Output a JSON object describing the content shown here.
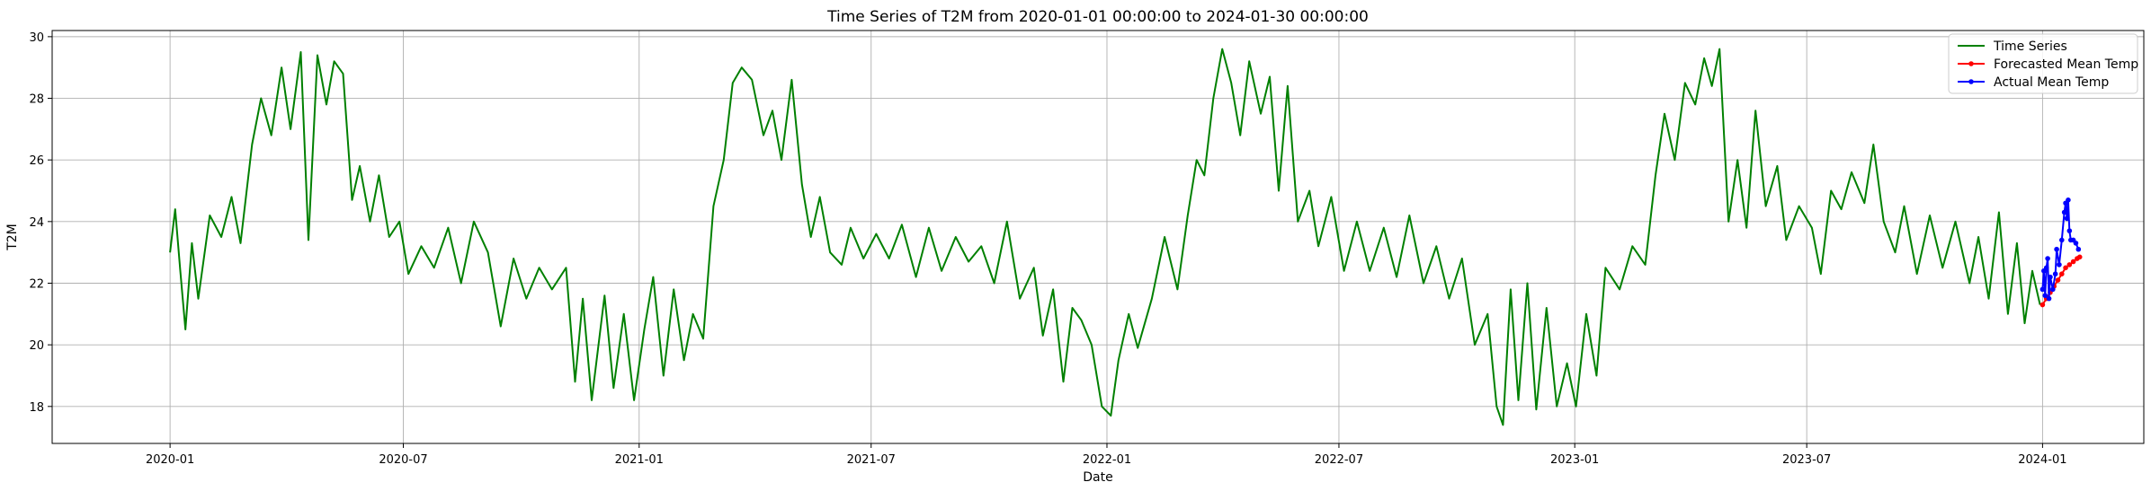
{
  "chart_data": {
    "type": "line",
    "title": "Time Series of T2M from 2020-01-01 00:00:00 to 2024-01-30 00:00:00",
    "xlabel": "Date",
    "ylabel": "T2M",
    "x_range": [
      "2019-10-01",
      "2024-03-20"
    ],
    "ylim": [
      16.8,
      30.2
    ],
    "grid": true,
    "legend_position": "top-right",
    "x_ticks": [
      "2020-01",
      "2020-07",
      "2021-01",
      "2021-07",
      "2022-01",
      "2022-07",
      "2023-01",
      "2023-07",
      "2024-01"
    ],
    "y_ticks": [
      18,
      20,
      22,
      24,
      26,
      28,
      30
    ],
    "colors": {
      "time_series": "#008000",
      "forecast": "#ff0000",
      "actual": "#0000ff",
      "grid": "#b0b0b0"
    },
    "series": [
      {
        "name": "Time Series",
        "style": "line",
        "points": [
          [
            "2020-01-01",
            23.0
          ],
          [
            "2020-01-05",
            24.4
          ],
          [
            "2020-01-09",
            22.4
          ],
          [
            "2020-01-13",
            20.5
          ],
          [
            "2020-01-18",
            23.3
          ],
          [
            "2020-01-23",
            21.5
          ],
          [
            "2020-02-01",
            24.2
          ],
          [
            "2020-02-10",
            23.5
          ],
          [
            "2020-02-18",
            24.8
          ],
          [
            "2020-02-25",
            23.3
          ],
          [
            "2020-03-05",
            26.5
          ],
          [
            "2020-03-12",
            28.0
          ],
          [
            "2020-03-20",
            26.8
          ],
          [
            "2020-03-28",
            29.0
          ],
          [
            "2020-04-04",
            27.0
          ],
          [
            "2020-04-12",
            29.5
          ],
          [
            "2020-04-18",
            23.4
          ],
          [
            "2020-04-25",
            29.4
          ],
          [
            "2020-05-02",
            27.8
          ],
          [
            "2020-05-08",
            29.2
          ],
          [
            "2020-05-15",
            28.8
          ],
          [
            "2020-05-22",
            24.7
          ],
          [
            "2020-05-28",
            25.8
          ],
          [
            "2020-06-05",
            24.0
          ],
          [
            "2020-06-12",
            25.5
          ],
          [
            "2020-06-20",
            23.5
          ],
          [
            "2020-06-28",
            24.0
          ],
          [
            "2020-07-05",
            22.3
          ],
          [
            "2020-07-15",
            23.2
          ],
          [
            "2020-07-25",
            22.5
          ],
          [
            "2020-08-05",
            23.8
          ],
          [
            "2020-08-15",
            22.0
          ],
          [
            "2020-08-25",
            24.0
          ],
          [
            "2020-09-05",
            23.0
          ],
          [
            "2020-09-15",
            20.6
          ],
          [
            "2020-09-25",
            22.8
          ],
          [
            "2020-10-05",
            21.5
          ],
          [
            "2020-10-15",
            22.5
          ],
          [
            "2020-10-25",
            21.8
          ],
          [
            "2020-11-05",
            22.5
          ],
          [
            "2020-11-12",
            18.8
          ],
          [
            "2020-11-18",
            21.5
          ],
          [
            "2020-11-25",
            18.2
          ],
          [
            "2020-12-05",
            21.6
          ],
          [
            "2020-12-12",
            18.6
          ],
          [
            "2020-12-20",
            21.0
          ],
          [
            "2020-12-28",
            18.2
          ],
          [
            "2021-01-05",
            20.5
          ],
          [
            "2021-01-12",
            22.2
          ],
          [
            "2021-01-20",
            19.0
          ],
          [
            "2021-01-28",
            21.8
          ],
          [
            "2021-02-05",
            19.5
          ],
          [
            "2021-02-12",
            21.0
          ],
          [
            "2021-02-20",
            20.2
          ],
          [
            "2021-02-28",
            24.5
          ],
          [
            "2021-03-08",
            26.0
          ],
          [
            "2021-03-15",
            28.5
          ],
          [
            "2021-03-22",
            29.0
          ],
          [
            "2021-03-30",
            28.6
          ],
          [
            "2021-04-08",
            26.8
          ],
          [
            "2021-04-15",
            27.6
          ],
          [
            "2021-04-22",
            26.0
          ],
          [
            "2021-04-30",
            28.6
          ],
          [
            "2021-05-08",
            25.2
          ],
          [
            "2021-05-15",
            23.5
          ],
          [
            "2021-05-22",
            24.8
          ],
          [
            "2021-05-30",
            23.0
          ],
          [
            "2021-06-08",
            22.6
          ],
          [
            "2021-06-15",
            23.8
          ],
          [
            "2021-06-25",
            22.8
          ],
          [
            "2021-07-05",
            23.6
          ],
          [
            "2021-07-15",
            22.8
          ],
          [
            "2021-07-25",
            23.9
          ],
          [
            "2021-08-05",
            22.2
          ],
          [
            "2021-08-15",
            23.8
          ],
          [
            "2021-08-25",
            22.4
          ],
          [
            "2021-09-05",
            23.5
          ],
          [
            "2021-09-15",
            22.7
          ],
          [
            "2021-09-25",
            23.2
          ],
          [
            "2021-10-05",
            22.0
          ],
          [
            "2021-10-15",
            24.0
          ],
          [
            "2021-10-25",
            21.5
          ],
          [
            "2021-11-05",
            22.5
          ],
          [
            "2021-11-12",
            20.3
          ],
          [
            "2021-11-20",
            21.8
          ],
          [
            "2021-11-28",
            18.8
          ],
          [
            "2021-12-05",
            21.2
          ],
          [
            "2021-12-12",
            20.8
          ],
          [
            "2021-12-20",
            20.0
          ],
          [
            "2021-12-28",
            18.0
          ],
          [
            "2022-01-04",
            17.7
          ],
          [
            "2022-01-10",
            19.5
          ],
          [
            "2022-01-18",
            21.0
          ],
          [
            "2022-01-25",
            19.9
          ],
          [
            "2022-02-05",
            21.5
          ],
          [
            "2022-02-15",
            23.5
          ],
          [
            "2022-02-25",
            21.8
          ],
          [
            "2022-03-05",
            24.2
          ],
          [
            "2022-03-12",
            26.0
          ],
          [
            "2022-03-18",
            25.5
          ],
          [
            "2022-03-25",
            28.0
          ],
          [
            "2022-04-01",
            29.6
          ],
          [
            "2022-04-08",
            28.5
          ],
          [
            "2022-04-15",
            26.8
          ],
          [
            "2022-04-22",
            29.2
          ],
          [
            "2022-05-01",
            27.5
          ],
          [
            "2022-05-08",
            28.7
          ],
          [
            "2022-05-15",
            25.0
          ],
          [
            "2022-05-22",
            28.4
          ],
          [
            "2022-05-30",
            24.0
          ],
          [
            "2022-06-08",
            25.0
          ],
          [
            "2022-06-15",
            23.2
          ],
          [
            "2022-06-25",
            24.8
          ],
          [
            "2022-07-05",
            22.4
          ],
          [
            "2022-07-15",
            24.0
          ],
          [
            "2022-07-25",
            22.4
          ],
          [
            "2022-08-05",
            23.8
          ],
          [
            "2022-08-15",
            22.2
          ],
          [
            "2022-08-25",
            24.2
          ],
          [
            "2022-09-05",
            22.0
          ],
          [
            "2022-09-15",
            23.2
          ],
          [
            "2022-09-25",
            21.5
          ],
          [
            "2022-10-05",
            22.8
          ],
          [
            "2022-10-15",
            20.0
          ],
          [
            "2022-10-25",
            21.0
          ],
          [
            "2022-11-01",
            18.0
          ],
          [
            "2022-11-06",
            17.4
          ],
          [
            "2022-11-12",
            21.8
          ],
          [
            "2022-11-18",
            18.2
          ],
          [
            "2022-11-25",
            22.0
          ],
          [
            "2022-12-02",
            17.9
          ],
          [
            "2022-12-10",
            21.2
          ],
          [
            "2022-12-18",
            18.0
          ],
          [
            "2022-12-26",
            19.4
          ],
          [
            "2023-01-02",
            18.0
          ],
          [
            "2023-01-10",
            21.0
          ],
          [
            "2023-01-18",
            19.0
          ],
          [
            "2023-01-25",
            22.5
          ],
          [
            "2023-02-05",
            21.8
          ],
          [
            "2023-02-15",
            23.2
          ],
          [
            "2023-02-25",
            22.6
          ],
          [
            "2023-03-05",
            25.5
          ],
          [
            "2023-03-12",
            27.5
          ],
          [
            "2023-03-20",
            26.0
          ],
          [
            "2023-03-28",
            28.5
          ],
          [
            "2023-04-05",
            27.8
          ],
          [
            "2023-04-12",
            29.3
          ],
          [
            "2023-04-18",
            28.4
          ],
          [
            "2023-04-24",
            29.6
          ],
          [
            "2023-05-01",
            24.0
          ],
          [
            "2023-05-08",
            26.0
          ],
          [
            "2023-05-15",
            23.8
          ],
          [
            "2023-05-22",
            27.6
          ],
          [
            "2023-05-30",
            24.5
          ],
          [
            "2023-06-08",
            25.8
          ],
          [
            "2023-06-15",
            23.4
          ],
          [
            "2023-06-25",
            24.5
          ],
          [
            "2023-07-05",
            23.8
          ],
          [
            "2023-07-12",
            22.3
          ],
          [
            "2023-07-20",
            25.0
          ],
          [
            "2023-07-28",
            24.4
          ],
          [
            "2023-08-05",
            25.6
          ],
          [
            "2023-08-15",
            24.6
          ],
          [
            "2023-08-22",
            26.5
          ],
          [
            "2023-08-30",
            24.0
          ],
          [
            "2023-09-08",
            23.0
          ],
          [
            "2023-09-15",
            24.5
          ],
          [
            "2023-09-25",
            22.3
          ],
          [
            "2023-10-05",
            24.2
          ],
          [
            "2023-10-15",
            22.5
          ],
          [
            "2023-10-25",
            24.0
          ],
          [
            "2023-11-05",
            22.0
          ],
          [
            "2023-11-12",
            23.5
          ],
          [
            "2023-11-20",
            21.5
          ],
          [
            "2023-11-28",
            24.3
          ],
          [
            "2023-12-05",
            21.0
          ],
          [
            "2023-12-12",
            23.3
          ],
          [
            "2023-12-18",
            20.7
          ],
          [
            "2023-12-24",
            22.4
          ],
          [
            "2023-12-30",
            21.3
          ]
        ]
      },
      {
        "name": "Forecasted Mean Temp",
        "style": "line-marker",
        "points": [
          [
            "2024-01-01",
            21.3
          ],
          [
            "2024-01-04",
            21.5
          ],
          [
            "2024-01-07",
            21.7
          ],
          [
            "2024-01-10",
            21.9
          ],
          [
            "2024-01-13",
            22.1
          ],
          [
            "2024-01-16",
            22.3
          ],
          [
            "2024-01-19",
            22.5
          ],
          [
            "2024-01-22",
            22.6
          ],
          [
            "2024-01-25",
            22.7
          ],
          [
            "2024-01-28",
            22.8
          ],
          [
            "2024-01-30",
            22.85
          ]
        ]
      },
      {
        "name": "Actual Mean Temp",
        "style": "line-marker",
        "points": [
          [
            "2024-01-01",
            21.8
          ],
          [
            "2024-01-02",
            22.4
          ],
          [
            "2024-01-03",
            21.6
          ],
          [
            "2024-01-04",
            22.5
          ],
          [
            "2024-01-05",
            22.8
          ],
          [
            "2024-01-06",
            21.5
          ],
          [
            "2024-01-07",
            22.2
          ],
          [
            "2024-01-09",
            21.8
          ],
          [
            "2024-01-11",
            22.3
          ],
          [
            "2024-01-12",
            23.1
          ],
          [
            "2024-01-14",
            22.6
          ],
          [
            "2024-01-16",
            23.4
          ],
          [
            "2024-01-18",
            24.3
          ],
          [
            "2024-01-19",
            24.6
          ],
          [
            "2024-01-20",
            24.1
          ],
          [
            "2024-01-21",
            24.7
          ],
          [
            "2024-01-22",
            23.7
          ],
          [
            "2024-01-23",
            23.4
          ],
          [
            "2024-01-25",
            23.4
          ],
          [
            "2024-01-27",
            23.3
          ],
          [
            "2024-01-29",
            23.1
          ]
        ]
      }
    ]
  }
}
